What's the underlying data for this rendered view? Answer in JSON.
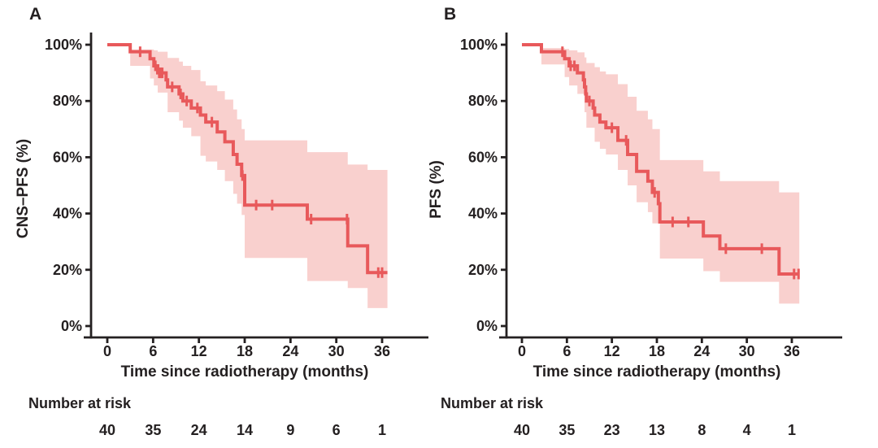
{
  "figure": {
    "xlabel": "Time since radiotherapy (months)",
    "risk_header": "Number at risk",
    "line_color": "#e8595b",
    "band_color": "#f9d0ce",
    "axis_color": "#242021",
    "text_color": "#242021",
    "xticks": [
      {
        "t": 0,
        "label": "0"
      },
      {
        "t": 6,
        "label": "6"
      },
      {
        "t": 12,
        "label": "12"
      },
      {
        "t": 18,
        "label": "18"
      },
      {
        "t": 24,
        "label": "24"
      },
      {
        "t": 30,
        "label": "30"
      },
      {
        "t": 36,
        "label": "36"
      }
    ],
    "yticks": [
      {
        "v": 100,
        "label": "100%"
      },
      {
        "v": 80,
        "label": "80%"
      },
      {
        "v": 60,
        "label": "60%"
      },
      {
        "v": 40,
        "label": "40%"
      },
      {
        "v": 20,
        "label": "20%"
      },
      {
        "v": 0,
        "label": "0%"
      }
    ]
  },
  "chart_data": [
    {
      "type": "line",
      "subtype": "kaplan-meier",
      "panel_label": "A",
      "ylabel": "CNS–PFS (%)",
      "xlabel": "Time since radiotherapy (months)",
      "xlim": [
        0,
        36
      ],
      "ylim": [
        0,
        100
      ],
      "grid": false,
      "legend": "none",
      "steps": [
        [
          0,
          100
        ],
        [
          3.0,
          97.5
        ],
        [
          5.6,
          95
        ],
        [
          6.1,
          92.5
        ],
        [
          6.6,
          90
        ],
        [
          7.7,
          87.5
        ],
        [
          7.9,
          85
        ],
        [
          9.4,
          82.5
        ],
        [
          9.9,
          80
        ],
        [
          11.0,
          77.5
        ],
        [
          12.2,
          75
        ],
        [
          12.9,
          72.5
        ],
        [
          14.4,
          69
        ],
        [
          15.4,
          65.5
        ],
        [
          16.5,
          61
        ],
        [
          17.0,
          57.5
        ],
        [
          17.6,
          53.5
        ],
        [
          18.0,
          43
        ],
        [
          26.2,
          38
        ],
        [
          31.5,
          28.5
        ],
        [
          34.1,
          19
        ]
      ],
      "end_t": 36.7,
      "censor_marks": [
        [
          4.3,
          97.5
        ],
        [
          6.3,
          92.5
        ],
        [
          6.8,
          90
        ],
        [
          7.0,
          90
        ],
        [
          7.2,
          90
        ],
        [
          8.5,
          85
        ],
        [
          9.6,
          82.5
        ],
        [
          10.4,
          80
        ],
        [
          11.8,
          77.5
        ],
        [
          13.7,
          72.5
        ],
        [
          17.7,
          53.5
        ],
        [
          19.5,
          43
        ],
        [
          21.6,
          43
        ],
        [
          26.7,
          38
        ],
        [
          31.4,
          38
        ],
        [
          35.5,
          19
        ],
        [
          36.0,
          19
        ]
      ],
      "ci_band": [
        [
          3.0,
          98.3,
          92.5
        ],
        [
          5.6,
          98.3,
          88
        ],
        [
          6.1,
          98,
          85.5
        ],
        [
          6.6,
          97.5,
          83
        ],
        [
          7.9,
          95.3,
          76
        ],
        [
          9.4,
          94,
          73
        ],
        [
          9.9,
          92.5,
          70.5
        ],
        [
          11.0,
          91,
          67.5
        ],
        [
          12.2,
          87,
          60.5
        ],
        [
          12.9,
          85.5,
          58.5
        ],
        [
          14.4,
          83.5,
          55.5
        ],
        [
          15.4,
          80.5,
          51.5
        ],
        [
          16.5,
          77,
          47
        ],
        [
          17.0,
          73.5,
          43.5
        ],
        [
          17.6,
          70,
          39.5
        ],
        [
          18.0,
          66,
          24.2
        ],
        [
          26.2,
          61.8,
          16
        ],
        [
          31.5,
          57.4,
          13.5
        ],
        [
          34.1,
          55.5,
          6.4
        ]
      ],
      "number_at_risk": {
        "times": [
          0,
          6,
          12,
          18,
          24,
          30,
          36
        ],
        "values": [
          40,
          35,
          24,
          14,
          9,
          6,
          1
        ]
      }
    },
    {
      "type": "line",
      "subtype": "kaplan-meier",
      "panel_label": "B",
      "ylabel": "PFS (%)",
      "xlabel": "Time since radiotherapy (months)",
      "xlim": [
        0,
        36
      ],
      "ylim": [
        0,
        100
      ],
      "grid": false,
      "legend": "none",
      "steps": [
        [
          0,
          100
        ],
        [
          2.6,
          97.5
        ],
        [
          5.7,
          95
        ],
        [
          6.3,
          92.5
        ],
        [
          7.4,
          90
        ],
        [
          8.2,
          87.5
        ],
        [
          8.35,
          85
        ],
        [
          8.5,
          82.5
        ],
        [
          8.6,
          80
        ],
        [
          9.5,
          77.5
        ],
        [
          9.7,
          75
        ],
        [
          10.4,
          72.5
        ],
        [
          11.2,
          70.5
        ],
        [
          12.8,
          66
        ],
        [
          14.1,
          61
        ],
        [
          15.3,
          55
        ],
        [
          16.8,
          51.5
        ],
        [
          17.4,
          47.5
        ],
        [
          18.2,
          43.5
        ],
        [
          18.4,
          37
        ],
        [
          24.2,
          32
        ],
        [
          26.4,
          27.5
        ],
        [
          34.3,
          18.5
        ]
      ],
      "end_t": 37.0,
      "censor_marks": [
        [
          5.4,
          97.5
        ],
        [
          6.5,
          92.5
        ],
        [
          7.0,
          92.5
        ],
        [
          9.0,
          80
        ],
        [
          12.0,
          70.5
        ],
        [
          13.9,
          66
        ],
        [
          17.7,
          47.5
        ],
        [
          20.1,
          37
        ],
        [
          22.2,
          37
        ],
        [
          27.2,
          27.5
        ],
        [
          32.0,
          27.5
        ],
        [
          36.3,
          18.5
        ],
        [
          36.9,
          18.5
        ]
      ],
      "ci_band": [
        [
          2.6,
          98.8,
          93
        ],
        [
          5.7,
          98.5,
          88.5
        ],
        [
          6.3,
          98,
          85.5
        ],
        [
          7.4,
          97.3,
          82.5
        ],
        [
          8.35,
          95.5,
          76
        ],
        [
          8.6,
          93.5,
          70.5
        ],
        [
          9.7,
          92,
          65.5
        ],
        [
          10.4,
          90.5,
          63
        ],
        [
          11.2,
          89.5,
          61
        ],
        [
          12.8,
          86,
          55.5
        ],
        [
          14.1,
          81.5,
          50
        ],
        [
          15.3,
          76.5,
          44
        ],
        [
          16.8,
          73.5,
          40.5
        ],
        [
          17.4,
          70,
          36.5
        ],
        [
          18.4,
          59,
          24
        ],
        [
          24.2,
          55,
          19.5
        ],
        [
          26.4,
          51.5,
          15.7
        ],
        [
          34.3,
          47.5,
          8
        ]
      ],
      "number_at_risk": {
        "times": [
          0,
          6,
          12,
          18,
          24,
          30,
          36
        ],
        "values": [
          40,
          35,
          23,
          13,
          8,
          4,
          1
        ]
      }
    }
  ]
}
